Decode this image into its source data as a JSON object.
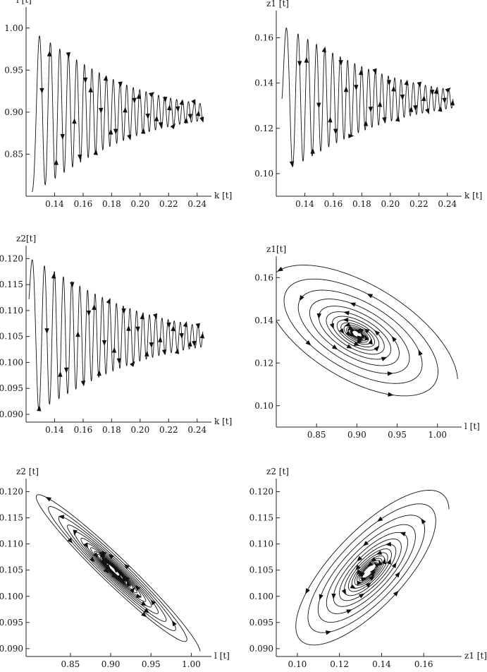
{
  "chart_data": [
    {
      "type": "line",
      "curve": "spiral",
      "xlabel": "k [t]",
      "ylabel": "l [t]",
      "xlim": [
        0.12,
        0.25
      ],
      "ylim": [
        0.8,
        1.025
      ],
      "xticks": [
        {
          "value": 0.14,
          "label": "0.14"
        },
        {
          "value": 0.16,
          "label": "0.16"
        },
        {
          "value": 0.18,
          "label": "0.18"
        },
        {
          "value": 0.2,
          "label": "0.20"
        },
        {
          "value": 0.22,
          "label": "0.22"
        },
        {
          "value": 0.24,
          "label": "0.24"
        }
      ],
      "yticks": [
        {
          "value": 0.85,
          "label": "0.85"
        },
        {
          "value": 0.9,
          "label": "0.90"
        },
        {
          "value": 0.95,
          "label": "0.95"
        },
        {
          "value": 1.0,
          "label": "1.00"
        }
      ],
      "trajectory": {
        "x_start": 0.124,
        "x_end": 0.244,
        "y_center": 0.9,
        "y_amplitude_start": 0.095,
        "y_amplitude_end": 0.01,
        "oscillations": 24,
        "phase_start": -1.57
      }
    },
    {
      "type": "line",
      "curve": "spiral",
      "xlabel": "k [t]",
      "ylabel": "z1 [t]",
      "xlim": [
        0.12,
        0.25
      ],
      "ylim": [
        0.09,
        0.172
      ],
      "xticks": [
        {
          "value": 0.14,
          "label": "0.14"
        },
        {
          "value": 0.16,
          "label": "0.16"
        },
        {
          "value": 0.18,
          "label": "0.18"
        },
        {
          "value": 0.2,
          "label": "0.20"
        },
        {
          "value": 0.22,
          "label": "0.22"
        },
        {
          "value": 0.24,
          "label": "0.24"
        }
      ],
      "yticks": [
        {
          "value": 0.1,
          "label": "0.10"
        },
        {
          "value": 0.12,
          "label": "0.12"
        },
        {
          "value": 0.14,
          "label": "0.14"
        },
        {
          "value": 0.16,
          "label": "0.16"
        }
      ],
      "trajectory": {
        "x_start": 0.124,
        "x_end": 0.244,
        "y_center": 0.133,
        "y_amplitude_start": 0.032,
        "y_amplitude_end": 0.004,
        "oscillations": 24,
        "phase_start": 0.0
      }
    },
    {
      "type": "line",
      "curve": "spiral",
      "xlabel": "k [t]",
      "ylabel": "z2[t]",
      "xlim": [
        0.12,
        0.25
      ],
      "ylim": [
        0.0885,
        0.1225
      ],
      "xticks": [
        {
          "value": 0.14,
          "label": "0.14"
        },
        {
          "value": 0.16,
          "label": "0.16"
        },
        {
          "value": 0.18,
          "label": "0.18"
        },
        {
          "value": 0.2,
          "label": "0.20"
        },
        {
          "value": 0.22,
          "label": "0.22"
        },
        {
          "value": 0.24,
          "label": "0.24"
        }
      ],
      "yticks": [
        {
          "value": 0.09,
          "label": "0.090"
        },
        {
          "value": 0.095,
          "label": "0.095"
        },
        {
          "value": 0.1,
          "label": "0.100"
        },
        {
          "value": 0.105,
          "label": "0.105"
        },
        {
          "value": 0.11,
          "label": "0.110"
        },
        {
          "value": 0.115,
          "label": "0.115"
        },
        {
          "value": 0.12,
          "label": "0.120"
        }
      ],
      "trajectory": {
        "x_start": 0.122,
        "x_end": 0.244,
        "y_center": 0.105,
        "y_amplitude_start": 0.015,
        "y_amplitude_end": 0.002,
        "oscillations": 24,
        "phase_start": 0.5
      }
    },
    {
      "type": "line",
      "curve": "spiral",
      "xlabel": "l [t]",
      "ylabel": "z1[t]",
      "xlim": [
        0.8,
        1.03
      ],
      "ylim": [
        0.09,
        0.17
      ],
      "xticks": [
        {
          "value": 0.85,
          "label": "0.85"
        },
        {
          "value": 0.9,
          "label": "0.90"
        },
        {
          "value": 0.95,
          "label": "0.95"
        },
        {
          "value": 1.0,
          "label": "1.00"
        }
      ],
      "yticks": [
        {
          "value": 0.1,
          "label": "0.10"
        },
        {
          "value": 0.12,
          "label": "0.12"
        },
        {
          "value": 0.14,
          "label": "0.14"
        },
        {
          "value": 0.16,
          "label": "0.16"
        }
      ],
      "trajectory": {
        "cx": 0.9,
        "cy": 0.1335,
        "outer_x_radius": 0.125,
        "outer_y_radius": 0.035,
        "inner_x_radius": 0.006,
        "inner_y_radius": 0.0015,
        "coupling": -0.6,
        "turns": 14
      }
    },
    {
      "type": "line",
      "curve": "spiral",
      "xlabel": "l [t]",
      "ylabel": "z2 [t]",
      "xlim": [
        0.795,
        1.025
      ],
      "ylim": [
        0.0885,
        0.1225
      ],
      "xticks": [
        {
          "value": 0.85,
          "label": "0.85"
        },
        {
          "value": 0.9,
          "label": "0.90"
        },
        {
          "value": 0.95,
          "label": "0.95"
        },
        {
          "value": 1.0,
          "label": "1.00"
        }
      ],
      "yticks": [
        {
          "value": 0.09,
          "label": "0.090"
        },
        {
          "value": 0.095,
          "label": "0.095"
        },
        {
          "value": 0.1,
          "label": "0.100"
        },
        {
          "value": 0.105,
          "label": "0.105"
        },
        {
          "value": 0.11,
          "label": "0.110"
        },
        {
          "value": 0.115,
          "label": "0.115"
        },
        {
          "value": 0.12,
          "label": "0.120"
        }
      ],
      "trajectory": {
        "cx": 0.905,
        "cy": 0.1048,
        "outer_x_radius": 0.106,
        "outer_y_radius": 0.0158,
        "inner_x_radius": 0.01,
        "inner_y_radius": 0.0015,
        "coupling": -0.97,
        "turns": 14
      }
    },
    {
      "type": "line",
      "curve": "spiral",
      "xlabel": "z1 [t]",
      "ylabel": "z2 [t]",
      "xlim": [
        0.09,
        0.178
      ],
      "ylim": [
        0.0885,
        0.1225
      ],
      "xticks": [
        {
          "value": 0.1,
          "label": "0.10"
        },
        {
          "value": 0.12,
          "label": "0.12"
        },
        {
          "value": 0.14,
          "label": "0.14"
        },
        {
          "value": 0.16,
          "label": "0.16"
        }
      ],
      "yticks": [
        {
          "value": 0.09,
          "label": "0.090"
        },
        {
          "value": 0.095,
          "label": "0.095"
        },
        {
          "value": 0.1,
          "label": "0.100"
        },
        {
          "value": 0.105,
          "label": "0.105"
        },
        {
          "value": 0.11,
          "label": "0.110"
        },
        {
          "value": 0.115,
          "label": "0.115"
        },
        {
          "value": 0.12,
          "label": "0.120"
        }
      ],
      "trajectory": {
        "cx": 0.134,
        "cy": 0.1048,
        "outer_x_radius": 0.038,
        "outer_y_radius": 0.0158,
        "inner_x_radius": 0.003,
        "inner_y_radius": 0.0012,
        "coupling": 0.75,
        "turns": 14
      }
    }
  ]
}
